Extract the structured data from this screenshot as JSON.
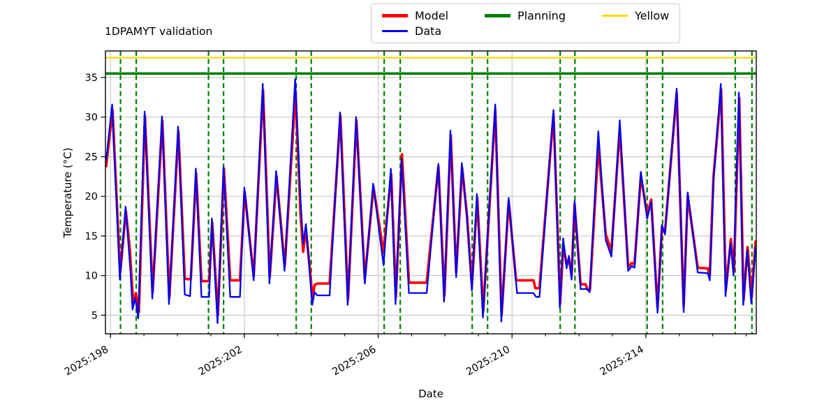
{
  "header": {
    "title": "1DPAMYT validation"
  },
  "legend": {
    "items": [
      {
        "label": "Model",
        "color": "#ff0000",
        "thick": true
      },
      {
        "label": "Planning",
        "color": "#008000",
        "thick": true
      },
      {
        "label": "Yellow",
        "color": "#ffd700",
        "thick": false
      },
      {
        "label": "Data",
        "color": "#0000ee",
        "thick": false
      }
    ]
  },
  "chart_data": {
    "type": "line",
    "title": "1DPAMYT validation",
    "xlabel": "Date",
    "ylabel": "Temperature (°C)",
    "x_unit": "year:day-of-year",
    "grid": true,
    "legend_position": "top-center",
    "xlim": [
      197.85,
      217.3
    ],
    "ylim": [
      2.65,
      38.35
    ],
    "x_major_ticks": [
      {
        "day": 198,
        "label": "2025:198"
      },
      {
        "day": 202,
        "label": "2025:202"
      },
      {
        "day": 206,
        "label": "2025:206"
      },
      {
        "day": 210,
        "label": "2025:210"
      },
      {
        "day": 214,
        "label": "2025:214"
      }
    ],
    "x_minor_tick_days": [
      198,
      199,
      200,
      201,
      202,
      203,
      204,
      205,
      206,
      207,
      208,
      209,
      210,
      211,
      212,
      213,
      214,
      215,
      216,
      217
    ],
    "y_ticks": [
      5,
      10,
      15,
      20,
      25,
      30,
      35
    ],
    "hlines": [
      {
        "name": "Yellow",
        "y": 37.5,
        "color": "#ffd700",
        "width": 2.2
      },
      {
        "name": "Planning",
        "y": 35.5,
        "color": "#008000",
        "width": 3.6
      }
    ],
    "vlines": {
      "name": "event-markers",
      "color": "#008000",
      "style": "dashed",
      "days": [
        198.3,
        198.77,
        200.93,
        201.38,
        203.55,
        204.0,
        206.18,
        206.66,
        208.81,
        209.27,
        211.44,
        211.88,
        214.04,
        214.5,
        216.67,
        217.17
      ]
    },
    "series": [
      {
        "name": "Model",
        "color": "#ff0000",
        "width": 3.6,
        "points": [
          [
            197.87,
            23.8
          ],
          [
            198.06,
            30.9
          ],
          [
            198.29,
            10.3
          ],
          [
            198.46,
            18.2
          ],
          [
            198.58,
            13.2
          ],
          [
            198.68,
            6.4
          ],
          [
            198.76,
            7.8
          ],
          [
            198.85,
            5.4
          ],
          [
            199.03,
            30.2
          ],
          [
            199.26,
            7.9
          ],
          [
            199.55,
            29.5
          ],
          [
            199.76,
            7.2
          ],
          [
            200.03,
            28.2
          ],
          [
            200.22,
            9.6
          ],
          [
            200.4,
            9.5
          ],
          [
            200.56,
            22.9
          ],
          [
            200.72,
            9.3
          ],
          [
            200.95,
            9.3
          ],
          [
            201.04,
            16.7
          ],
          [
            201.21,
            5.0
          ],
          [
            201.39,
            23.5
          ],
          [
            201.58,
            9.4
          ],
          [
            201.87,
            9.4
          ],
          [
            202.01,
            20.6
          ],
          [
            202.28,
            9.9
          ],
          [
            202.56,
            33.4
          ],
          [
            202.76,
            9.8
          ],
          [
            202.96,
            22.6
          ],
          [
            203.21,
            11.2
          ],
          [
            203.53,
            33.2
          ],
          [
            203.68,
            17.5
          ],
          [
            203.76,
            13.0
          ],
          [
            203.84,
            16.0
          ],
          [
            204.04,
            7.2
          ],
          [
            204.1,
            8.8
          ],
          [
            204.18,
            9.0
          ],
          [
            204.55,
            9.0
          ],
          [
            204.87,
            30.2
          ],
          [
            205.1,
            7.0
          ],
          [
            205.35,
            29.6
          ],
          [
            205.6,
            9.6
          ],
          [
            205.86,
            21.2
          ],
          [
            206.16,
            12.9
          ],
          [
            206.39,
            22.8
          ],
          [
            206.53,
            7.3
          ],
          [
            206.71,
            25.3
          ],
          [
            206.92,
            9.1
          ],
          [
            207.45,
            9.1
          ],
          [
            207.8,
            23.8
          ],
          [
            207.98,
            7.5
          ],
          [
            208.17,
            27.7
          ],
          [
            208.33,
            10.4
          ],
          [
            208.51,
            23.6
          ],
          [
            208.65,
            17.8
          ],
          [
            208.8,
            8.7
          ],
          [
            208.96,
            19.8
          ],
          [
            209.14,
            5.5
          ],
          [
            209.5,
            31.0
          ],
          [
            209.69,
            5.0
          ],
          [
            209.9,
            19.4
          ],
          [
            210.12,
            9.4
          ],
          [
            210.64,
            9.4
          ],
          [
            210.7,
            8.4
          ],
          [
            210.82,
            8.4
          ],
          [
            211.24,
            30.4
          ],
          [
            211.44,
            6.5
          ],
          [
            211.53,
            13.9
          ],
          [
            211.63,
            11.4
          ],
          [
            211.7,
            12.1
          ],
          [
            211.78,
            10.0
          ],
          [
            211.87,
            19.0
          ],
          [
            212.05,
            8.9
          ],
          [
            212.2,
            8.9
          ],
          [
            212.26,
            8.2
          ],
          [
            212.33,
            8.2
          ],
          [
            212.58,
            26.4
          ],
          [
            212.8,
            15.2
          ],
          [
            212.97,
            13.1
          ],
          [
            213.22,
            28.5
          ],
          [
            213.47,
            11.1
          ],
          [
            213.58,
            11.6
          ],
          [
            213.66,
            11.4
          ],
          [
            213.85,
            22.6
          ],
          [
            214.04,
            17.6
          ],
          [
            214.16,
            19.6
          ],
          [
            214.35,
            5.9
          ],
          [
            214.48,
            16.1
          ],
          [
            214.57,
            15.5
          ],
          [
            214.92,
            33.1
          ],
          [
            215.13,
            6.1
          ],
          [
            215.25,
            20.1
          ],
          [
            215.55,
            11.0
          ],
          [
            215.85,
            10.9
          ],
          [
            215.91,
            10.0
          ],
          [
            216.02,
            22.5
          ],
          [
            216.25,
            33.5
          ],
          [
            216.39,
            8.2
          ],
          [
            216.54,
            14.6
          ],
          [
            216.63,
            10.5
          ],
          [
            216.79,
            32.4
          ],
          [
            216.92,
            6.9
          ],
          [
            217.04,
            13.6
          ],
          [
            217.16,
            7.2
          ],
          [
            217.28,
            14.3
          ]
        ]
      },
      {
        "name": "Data",
        "color": "#0000ee",
        "width": 2.3,
        "points": [
          [
            197.87,
            24.5
          ],
          [
            198.05,
            31.6
          ],
          [
            198.28,
            9.5
          ],
          [
            198.45,
            18.7
          ],
          [
            198.6,
            10.5
          ],
          [
            198.66,
            5.7
          ],
          [
            198.74,
            7.2
          ],
          [
            198.83,
            4.6
          ],
          [
            199.02,
            30.7
          ],
          [
            199.25,
            7.1
          ],
          [
            199.54,
            30.1
          ],
          [
            199.75,
            6.4
          ],
          [
            200.02,
            28.8
          ],
          [
            200.22,
            7.6
          ],
          [
            200.38,
            7.4
          ],
          [
            200.55,
            23.5
          ],
          [
            200.72,
            7.3
          ],
          [
            200.95,
            7.3
          ],
          [
            201.03,
            17.2
          ],
          [
            201.2,
            4.0
          ],
          [
            201.38,
            23.7
          ],
          [
            201.58,
            7.3
          ],
          [
            201.87,
            7.3
          ],
          [
            202.0,
            21.1
          ],
          [
            202.28,
            9.4
          ],
          [
            202.55,
            34.2
          ],
          [
            202.75,
            9.0
          ],
          [
            202.95,
            23.2
          ],
          [
            203.2,
            10.6
          ],
          [
            203.52,
            34.8
          ],
          [
            203.68,
            19.5
          ],
          [
            203.76,
            14.0
          ],
          [
            203.84,
            16.5
          ],
          [
            204.03,
            6.3
          ],
          [
            204.1,
            7.9
          ],
          [
            204.18,
            7.5
          ],
          [
            204.55,
            7.5
          ],
          [
            204.86,
            30.6
          ],
          [
            205.09,
            6.3
          ],
          [
            205.34,
            30.0
          ],
          [
            205.6,
            9.0
          ],
          [
            205.85,
            21.6
          ],
          [
            206.16,
            11.3
          ],
          [
            206.38,
            23.5
          ],
          [
            206.52,
            6.4
          ],
          [
            206.7,
            24.7
          ],
          [
            206.92,
            7.8
          ],
          [
            207.45,
            7.8
          ],
          [
            207.8,
            24.1
          ],
          [
            207.97,
            6.7
          ],
          [
            208.16,
            28.3
          ],
          [
            208.33,
            9.8
          ],
          [
            208.5,
            24.2
          ],
          [
            208.65,
            17.5
          ],
          [
            208.8,
            8.1
          ],
          [
            208.95,
            20.3
          ],
          [
            209.13,
            4.7
          ],
          [
            209.5,
            31.6
          ],
          [
            209.68,
            4.2
          ],
          [
            209.9,
            19.8
          ],
          [
            210.15,
            7.8
          ],
          [
            210.64,
            7.8
          ],
          [
            210.72,
            7.3
          ],
          [
            210.82,
            7.3
          ],
          [
            211.24,
            30.9
          ],
          [
            211.43,
            5.9
          ],
          [
            211.53,
            14.7
          ],
          [
            211.63,
            10.9
          ],
          [
            211.7,
            12.5
          ],
          [
            211.78,
            9.5
          ],
          [
            211.87,
            19.4
          ],
          [
            212.05,
            8.3
          ],
          [
            212.25,
            8.3
          ],
          [
            212.32,
            7.9
          ],
          [
            212.58,
            28.2
          ],
          [
            212.8,
            14.5
          ],
          [
            212.97,
            12.4
          ],
          [
            213.22,
            29.6
          ],
          [
            213.47,
            10.6
          ],
          [
            213.58,
            11.2
          ],
          [
            213.66,
            11.0
          ],
          [
            213.85,
            23.1
          ],
          [
            214.04,
            17.2
          ],
          [
            214.16,
            19.3
          ],
          [
            214.35,
            5.3
          ],
          [
            214.48,
            16.4
          ],
          [
            214.57,
            15.2
          ],
          [
            214.92,
            33.6
          ],
          [
            215.13,
            5.4
          ],
          [
            215.25,
            20.5
          ],
          [
            215.55,
            10.4
          ],
          [
            215.85,
            10.3
          ],
          [
            215.91,
            9.4
          ],
          [
            216.02,
            22.0
          ],
          [
            216.24,
            34.2
          ],
          [
            216.38,
            7.4
          ],
          [
            216.53,
            14.1
          ],
          [
            216.62,
            10.0
          ],
          [
            216.78,
            33.1
          ],
          [
            216.91,
            6.3
          ],
          [
            217.03,
            13.2
          ],
          [
            217.15,
            6.5
          ],
          [
            217.28,
            13.6
          ]
        ]
      }
    ]
  }
}
